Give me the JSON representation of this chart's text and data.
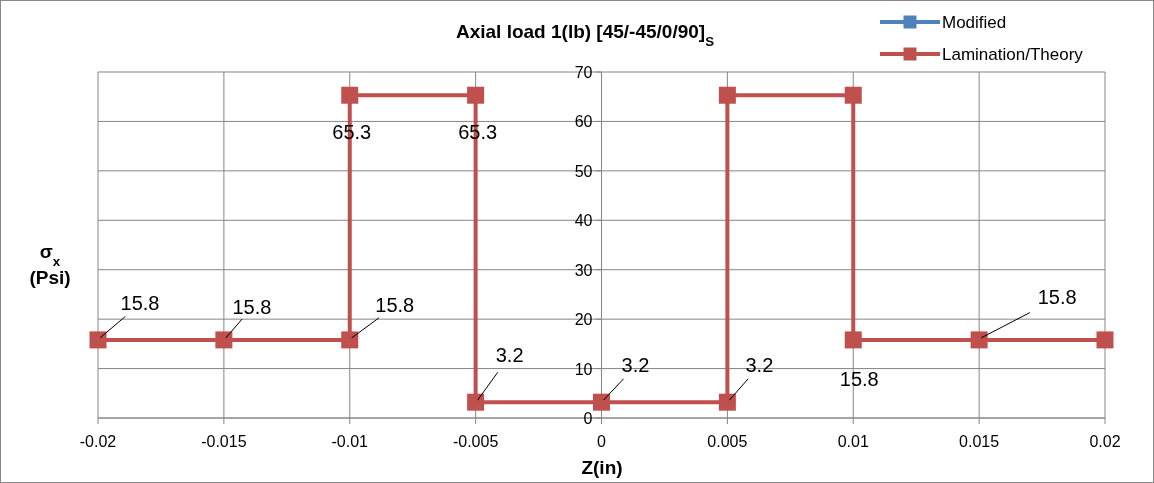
{
  "chart_data": {
    "type": "line",
    "title": "Axial load 1(lb) [45/-45/0/90]$_{S}$",
    "xlabel": "Z(in)",
    "ylabel": "σ$_{x}$ (Psi)",
    "x": [
      -0.02,
      -0.015,
      -0.01,
      -0.01,
      -0.005,
      -0.005,
      0,
      0.005,
      0.005,
      0.01,
      0.01,
      0.015,
      0.02
    ],
    "series": [
      {
        "name": "Modified",
        "color": "#4f81bd",
        "values": [
          null,
          null,
          null,
          null,
          null,
          null,
          null,
          null,
          null,
          null,
          null,
          null,
          null
        ]
      },
      {
        "name": "Lamination/Theory",
        "color": "#c0504d",
        "values": [
          15.8,
          15.8,
          15.8,
          65.3,
          65.3,
          3.2,
          3.2,
          3.2,
          65.3,
          65.3,
          15.8,
          15.8,
          15.8
        ],
        "value_labels": [
          "15.8",
          "15.8",
          "15.8",
          "65.3",
          "65.3",
          "3.2",
          "3.2",
          "3.2",
          null,
          null,
          "15.8",
          "15.8",
          null
        ]
      }
    ],
    "xlim": [
      -0.02,
      0.02
    ],
    "xticks": [
      -0.02,
      -0.015,
      -0.01,
      -0.005,
      0,
      0.005,
      0.01,
      0.015,
      0.02
    ],
    "ylim": [
      0,
      70
    ],
    "yticks": [
      0,
      10,
      20,
      30,
      40,
      50,
      60,
      70
    ],
    "grid": true,
    "legend": "top right",
    "marker": "square",
    "line_style": "solid"
  }
}
